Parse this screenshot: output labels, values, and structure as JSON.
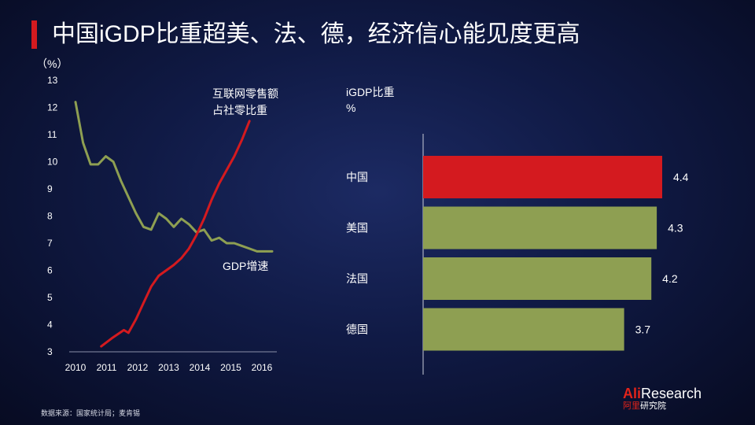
{
  "header": {
    "title": "中国iGDP比重超美、法、德，经济信心能见度更高"
  },
  "chart_data": [
    {
      "type": "line",
      "ylabel": "（%）",
      "ylim": [
        3,
        13
      ],
      "yticks": [
        "13",
        "12",
        "11",
        "10",
        "9",
        "8",
        "7",
        "6",
        "5",
        "4",
        "3"
      ],
      "xlim": [
        2010,
        2016.5
      ],
      "xticks": [
        "2010",
        "2011",
        "2012",
        "2013",
        "2014",
        "2015",
        "2016"
      ],
      "series": [
        {
          "name": "GDP增速",
          "color": "#8e9f52",
          "points": [
            [
              2010.0,
              12.2
            ],
            [
              2010.25,
              10.7
            ],
            [
              2010.5,
              9.9
            ],
            [
              2010.75,
              9.9
            ],
            [
              2011.0,
              10.2
            ],
            [
              2011.25,
              10.0
            ],
            [
              2011.5,
              9.3
            ],
            [
              2011.75,
              8.7
            ],
            [
              2012.0,
              8.1
            ],
            [
              2012.25,
              7.6
            ],
            [
              2012.5,
              7.5
            ],
            [
              2012.75,
              8.1
            ],
            [
              2013.0,
              7.9
            ],
            [
              2013.25,
              7.6
            ],
            [
              2013.5,
              7.9
            ],
            [
              2013.75,
              7.7
            ],
            [
              2014.0,
              7.4
            ],
            [
              2014.25,
              7.5
            ],
            [
              2014.5,
              7.1
            ],
            [
              2014.75,
              7.2
            ],
            [
              2015.0,
              7.0
            ],
            [
              2015.25,
              7.0
            ],
            [
              2015.5,
              6.9
            ],
            [
              2015.75,
              6.8
            ],
            [
              2016.0,
              6.7
            ],
            [
              2016.25,
              6.7
            ],
            [
              2016.5,
              6.7
            ]
          ]
        },
        {
          "name": "互联网零售额占社零比重",
          "label_lines": [
            "互联网零售额",
            "占社零比重"
          ],
          "color": "#d41a1f",
          "points": [
            [
              2010.85,
              3.2
            ],
            [
              2011.2,
              3.5
            ],
            [
              2011.6,
              3.8
            ],
            [
              2011.75,
              3.7
            ],
            [
              2012.0,
              4.2
            ],
            [
              2012.25,
              4.8
            ],
            [
              2012.5,
              5.4
            ],
            [
              2012.75,
              5.8
            ],
            [
              2013.0,
              6.0
            ],
            [
              2013.25,
              6.2
            ],
            [
              2013.5,
              6.45
            ],
            [
              2013.75,
              6.8
            ],
            [
              2014.0,
              7.3
            ],
            [
              2014.25,
              7.9
            ],
            [
              2014.5,
              8.6
            ],
            [
              2014.75,
              9.2
            ],
            [
              2015.0,
              9.7
            ],
            [
              2015.25,
              10.2
            ],
            [
              2015.5,
              10.8
            ],
            [
              2015.75,
              11.5
            ]
          ]
        }
      ]
    },
    {
      "type": "bar",
      "orientation": "horizontal",
      "title_lines": [
        "iGDP比重",
        "%"
      ],
      "categories": [
        "中国",
        "美国",
        "法国",
        "德国"
      ],
      "values": [
        4.4,
        4.3,
        4.2,
        3.7
      ],
      "value_labels": [
        "4.4",
        "4.3",
        "4.2",
        "3.7"
      ],
      "colors": [
        "#d41a1f",
        "#8e9f52",
        "#8e9f52",
        "#8e9f52"
      ]
    }
  ],
  "footer": {
    "source": "数据来源：国家统计局；麦肯锡",
    "logo": {
      "brand_en_1": "Ali",
      "brand_en_2": "Research",
      "brand_cn_1": "阿里",
      "brand_cn_2": "研究院"
    }
  }
}
